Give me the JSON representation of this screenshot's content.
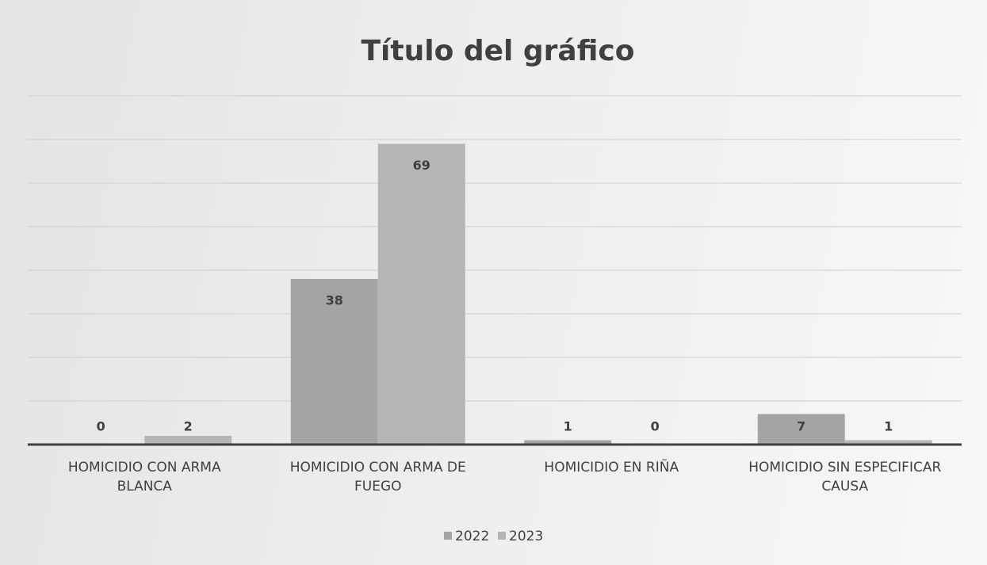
{
  "chart_data": {
    "type": "bar",
    "title": "Título del gráfico",
    "categories": [
      "HOMICIDIO CON ARMA BLANCA",
      "HOMICIDIO CON ARMA DE FUEGO",
      "HOMICIDIO EN RIÑA",
      "HOMICIDIO SIN ESPECIFICAR CAUSA"
    ],
    "series": [
      {
        "name": "2022",
        "color": "#a4a4a4",
        "values": [
          0,
          38,
          1,
          7
        ]
      },
      {
        "name": "2023",
        "color": "#b5b5b5",
        "values": [
          2,
          69,
          0,
          1
        ]
      }
    ],
    "ylim": [
      0,
      80
    ],
    "yticks": [
      0,
      10,
      20,
      30,
      40,
      50,
      60,
      70,
      80
    ],
    "grid": true,
    "legend": "bottom"
  }
}
